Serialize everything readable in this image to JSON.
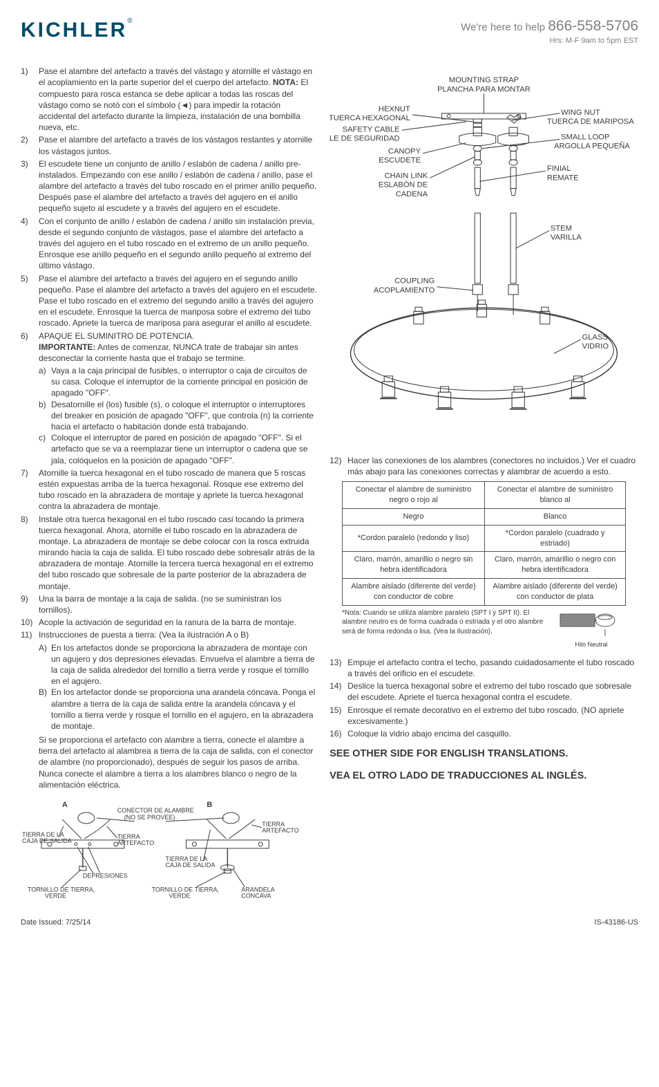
{
  "header": {
    "logo": "KICHLER",
    "logo_reg": "®",
    "help_prefix": "We're here to help",
    "phone": "866-558-5706",
    "hours": "Hrs: M-F 9am to 5pm EST"
  },
  "diagram": {
    "mounting_strap": "MOUNTING STRAP",
    "mounting_strap_es": "PLANCHA PARA MONTAR",
    "hexnut": "HEXNUT",
    "hexnut_es": "TUERCA HEXAGONAL",
    "wing_nut": "WING NUT",
    "wing_nut_es": "TUERCA DE MARIPOSA",
    "safety_cable": "SAFETY CABLE",
    "safety_cable_es": "CABLE DE SEGURIDAD",
    "small_loop": "SMALL LOOP",
    "small_loop_es": "ARGOLLA PEQUEÑA",
    "canopy": "CANOPY",
    "canopy_es": "ESCUDETE",
    "finial": "FINIAL",
    "finial_es": "REMATE",
    "chain_link": "CHAIN LINK",
    "chain_link_es": "ESLABÓN DE",
    "chain_link_es2": "CADENA",
    "stem": "STEM",
    "stem_es": "VARILLA",
    "coupling": "COUPLING",
    "coupling_es": "ACOPLAMIENTO",
    "glass": "GLASS",
    "glass_es": "VIDRIO"
  },
  "steps": [
    {
      "n": "1)",
      "t": "Pase el alambre del artefacto a través del vástago y atornille el vástago en el acoplamiento en la parte superior del el cuerpo del artefacto. <b>NOTA:</b> El compuesto para rosca estanca se debe aplicar a todas las roscas del vástago como se notó con el símbolo (◄) para impedir la rotación accidental del artefacto durante la limpieza, instalación de una bombilla nueva, etc."
    },
    {
      "n": "2)",
      "t": "Pase el alambre del artefacto a través de los vástagos restantes y atornille los vástagos juntos."
    },
    {
      "n": "3)",
      "t": "El escudete tiene un conjunto de anillo / eslabón de cadena / anillo pre-instalados. Empezando con ese anillo / eslabón de cadena / anillo, pase el alambre del artefacto a través del tubo roscado en el primer anillo pequeño. Después pase el alambre del artefacto a través del agujero en el anillo pequeño sujeto al escudete y a través del agujero en el escudete."
    },
    {
      "n": "4)",
      "t": "Con el conjunto de anillo / eslabón de cadena / anillo sin instalación previa, desde el segundo conjunto de vástagos, pase el alambre del artefacto a través del agujero en el tubo roscado en el extremo de un anillo pequeño. Enrosque ese anillo pequeño en el segundo anillo pequeño al extremo del último vástago."
    },
    {
      "n": "5)",
      "t": "Pase el alambre del artefacto a través del agujero en el segundo anillo pequeño. Pase el alambre del artefacto a través del agujero en el escudete. Pase el tubo roscado en el extremo del segundo anillo a través del agujero en el escudete. Enrosque la tuerca de mariposa sobre el extremo del tubo roscado. Apriete la tuerca de mariposa para asegurar el anillo al escudete."
    },
    {
      "n": "6)",
      "t": "APAQUE EL SUMINITRO DE POTENCIA.<br><b>IMPORTANTE:</b> Antes de comenzar, NUNCA trate de trabajar sin antes desconectar la corriente hasta que el trabajo se termine.",
      "sub": [
        {
          "n": "a)",
          "t": "Vaya a la caja principal de fusibles, o interruptor o caja de circuitos de su casa. Coloque el interruptor de la corriente principal en posición de apagado \"OFF\"."
        },
        {
          "n": "b)",
          "t": "Desatornille el (los) fusible (s), o coloque el interruptor o interruptores del breaker en posición de apagado \"OFF\", que controla (n) la corriente hacia el artefacto o habitación donde está trabajando."
        },
        {
          "n": "c)",
          "t": "Coloque el interruptor de pared en posición de apagado \"OFF\". Si el artefacto que se va a reemplazar tiene un interruptor o cadena que se jala, colóquelos en la posición de apagado \"OFF\"."
        }
      ]
    },
    {
      "n": "7)",
      "t": "Atornille la tuerca hexagonal en el tubo roscado de manera que 5 roscas estén expuestas arriba de la tuerca hexagonal. Rosque ese extremo del tubo roscado en la abrazadera de montaje y apriete la tuerca hexagonal contra la abrazadera de montaje."
    },
    {
      "n": "8)",
      "t": "Instale otra tuerca hexagonal en el tubo roscado casi tocando la primera tuerca hexagonal. Ahora, atornille el tubo roscado en la abrazadera de montaje. La abrazadera de montaje se debe colocar con la rosca extruida mirando hacia la caja de salida. El tubo roscado debe sobresalir atrás de la abrazadera de montaje. Atornille la tercera tuerca hexagonal en el extremo del tubo roscado que sobresale de la parte posterior de la abrazadera de montaje."
    },
    {
      "n": "9)",
      "t": "Una la barra de montaje a la caja de salida. (no se suministran los tornillos)."
    },
    {
      "n": "10)",
      "t": "Acople la activación de seguridad en la ranura de la barra de montaje."
    },
    {
      "n": "11)",
      "t": "Instrucciones de puesta a tierra: (Vea la ilustración A o B)",
      "sub": [
        {
          "n": "A)",
          "t": "En los artefactos donde se proporciona la abrazadera de montaje con un agujero y dos depresiones elevadas. Envuelva el alambre a tierra de la caja de salida alrededor del tornillo a tierra verde y rosque el tornillo en el agujero."
        },
        {
          "n": "B)",
          "t": "En los artefactor donde se proporciona una arandela cóncava. Ponga el alambre a tierra de la caja de salida entre la arandela cóncava y el tornillo a tierra verde y rosque el tornillo en el agujero, en la abrazadera de montaje."
        }
      ],
      "tail": "Si se proporciona el artefacto con alambre a tierra, conecte el alambre a tierra del artefacto al alambrea a tierra de la caja de salida, con el conector de alambre (no proporcionado), después de seguir los pasos de arriba. Nunca conecte el alambre a tierra a los alambres blanco o negro de la alimentación eléctrica."
    }
  ],
  "steps_right": [
    {
      "n": "12)",
      "t": "Hacer las conexiones de los alambres (conectores no incluidos.) Ver el cuadro más abajo para las conexiones correctas y alambrar de acuerdo a esto."
    },
    {
      "n": "13)",
      "t": "Empuje el artefacto contra el techo, pasando cuidadosamente el tubo roscado a través del orificio en el escudete."
    },
    {
      "n": "14)",
      "t": "Deslice la tuerca hexagonal sobre el extremo del tubo roscado que sobresale del escudete. Apriete el tuerca hexagonal contra el escudete."
    },
    {
      "n": "15)",
      "t": "Enrosque el remate decorativo en el extremo del tubo roscado. (NO apriete excesivamente.)"
    },
    {
      "n": "16)",
      "t": "Coloque la vidrio abajo encima del casquillo."
    }
  ],
  "wire_table": {
    "h1": "Conectar el alambre de suministro negro o rojo al",
    "h2": "Conectar el alambre de suministro blanco al",
    "r1c1": "Negro",
    "r1c2": "Blanco",
    "r2c1": "*Cordon paralelo (redondo y liso)",
    "r2c2": "*Cordon paralelo (cuadrado y estriado)",
    "r3c1": "Claro, marrón, amarillio o negro sin hebra identificadora",
    "r3c2": "Claro, marrón, amarillio o negro con hebra identificadora",
    "r4c1": "Alambre aislado (diferente del verde) con conductor de cobre",
    "r4c2": "Alambre aislado (diferente del verde) con conductor de plata",
    "note": "*Nota: Cuando se utiliza alambre paralelo (SPT I y SPT II). El alambre neutro es de forma cuadrada o estriada y el otro alambre será de forma redonda o lisa. (Vea la ilustración).",
    "neutral": "Hilo Neutral"
  },
  "ground_diagram": {
    "a": "A",
    "b": "B",
    "connector": "CONECTOR DE ALAMBRE",
    "not_supplied": "(NO SE PROVEE)",
    "outlet_ground": "TIERRA DE LA",
    "outlet_ground2": "CAJA DE SALIDA",
    "fixture_ground": "TIERRA",
    "fixture_ground2": "ARTEFACTO",
    "dimples": "DEPRESIONES",
    "green_screw": "TORNILLO DE TIERRA,",
    "green_screw2": "VERDE",
    "washer": "ARANDELA",
    "washer2": "CONCAVA"
  },
  "bottom": {
    "line1": "SEE OTHER SIDE FOR ENGLISH TRANSLATIONS.",
    "line2": "VEA EL OTRO LADO DE TRADUCCIONES AL INGLÉS."
  },
  "footer": {
    "date": "Date Issued: 7/25/14",
    "code": "IS-43186-US"
  }
}
